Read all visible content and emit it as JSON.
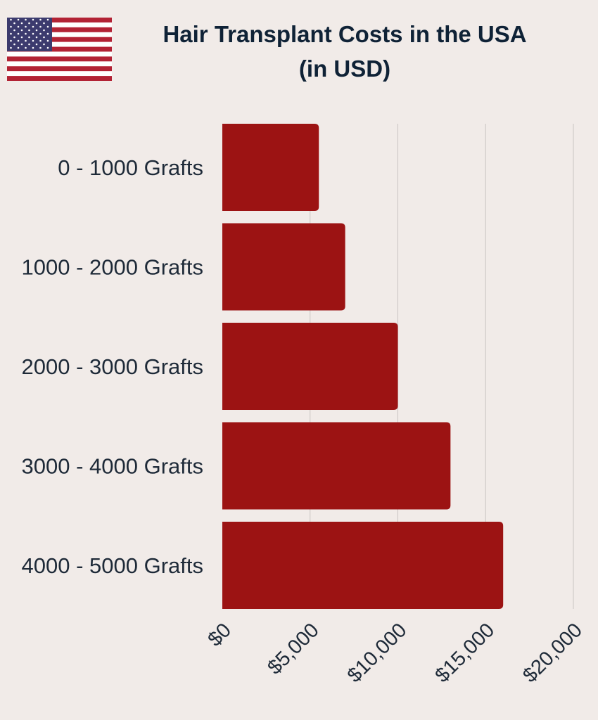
{
  "header": {
    "title_line1": "Hair Transplant Costs in the USA",
    "title_line2": "(in USD)",
    "flag_icon": "us-flag-icon"
  },
  "colors": {
    "background": "#f1ebe8",
    "bar": "#9c1313",
    "text": "#1e2a38",
    "grid": "#c9c4c2",
    "flag_red": "#b22234",
    "flag_blue": "#3c3b6e"
  },
  "chart_data": {
    "type": "bar",
    "orientation": "horizontal",
    "categories": [
      "0 - 1000 Grafts",
      "1000 - 2000 Grafts",
      "2000 - 3000 Grafts",
      "3000 - 4000 Grafts",
      "4000 - 5000 Grafts"
    ],
    "values": [
      5500,
      7000,
      10000,
      13000,
      16000
    ],
    "xlim": [
      0,
      20000
    ],
    "xticks": [
      "$0",
      "$5,000",
      "$10,000",
      "$15,000",
      "$20,000"
    ],
    "grid": true,
    "legend": "none"
  }
}
